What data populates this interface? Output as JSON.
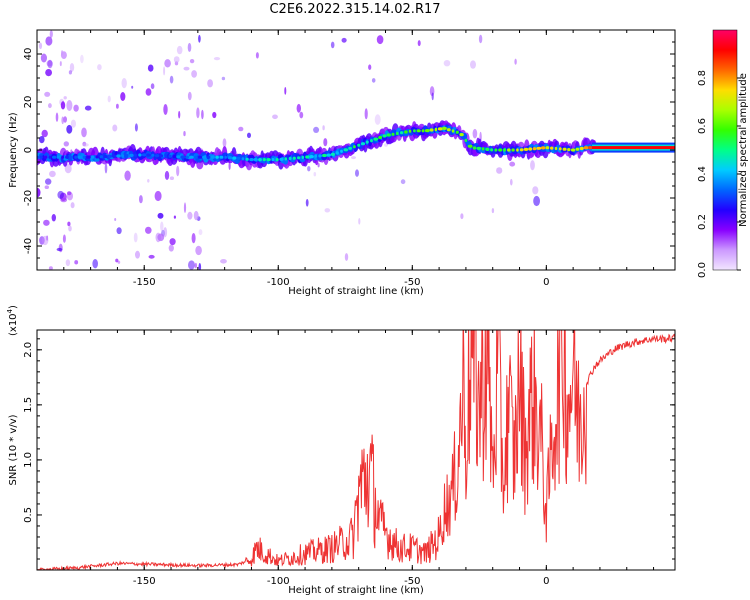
{
  "title": "C2E6.2022.315.14.02.R17",
  "chart_data": [
    {
      "type": "heatmap",
      "title": "C2E6.2022.315.14.02.R17",
      "xlabel": "Height of straight line (km)",
      "ylabel": "Frequency (Hz)",
      "xlim": [
        -190,
        48
      ],
      "ylim": [
        -50,
        50
      ],
      "x_ticks": [
        -150,
        -100,
        -50,
        0
      ],
      "y_ticks": [
        -40,
        -20,
        0,
        20,
        40
      ],
      "colorbar": {
        "label": "Normalized spectral amplitude",
        "range": [
          0.0,
          1.0
        ],
        "ticks": [
          "0.0",
          "0.2",
          "0.4",
          "0.6",
          "0.8"
        ],
        "colormap": [
          "#f2e6ff",
          "#cc99ff",
          "#8800ff",
          "#2200ff",
          "#0066ff",
          "#00ccff",
          "#00ff88",
          "#33ff00",
          "#aaff00",
          "#ffdd00",
          "#ff6600",
          "#ff0000",
          "#ff0066"
        ]
      },
      "ridge": {
        "x": [
          -190,
          -170,
          -150,
          -135,
          -120,
          -110,
          -100,
          -90,
          -80,
          -70,
          -60,
          -50,
          -45,
          -38,
          -32,
          -28,
          -20,
          -10,
          0,
          10,
          15,
          48
        ],
        "y": [
          -3,
          -3,
          -2,
          -3,
          -3,
          -4,
          -4,
          -3,
          -2,
          2,
          6,
          8,
          8,
          9,
          7,
          1,
          0,
          0,
          1,
          0,
          1,
          1
        ],
        "amplitude": [
          0.3,
          0.3,
          0.35,
          0.3,
          0.4,
          0.4,
          0.45,
          0.45,
          0.45,
          0.5,
          0.5,
          0.55,
          0.6,
          0.7,
          0.6,
          0.55,
          0.6,
          0.65,
          0.75,
          0.7,
          0.8,
          0.85
        ]
      }
    },
    {
      "type": "line",
      "title": "",
      "xlabel": "Height of straight line (km)",
      "ylabel": "SNR (10 * v/v)",
      "scale_label": "(x10",
      "scale_exponent": "4",
      "scale_suffix": ")",
      "xlim": [
        -190,
        48
      ],
      "ylim": [
        0,
        21800
      ],
      "x_ticks": [
        -150,
        -100,
        -50,
        0
      ],
      "y_ticks": [
        5000,
        10000,
        15000,
        20000
      ],
      "y_tick_labels": [
        "0.5",
        "1.0",
        "1.5",
        "2.0"
      ],
      "color": "#ee3333",
      "x": [
        -190,
        -175,
        -160,
        -145,
        -130,
        -115,
        -110,
        -108,
        -100,
        -90,
        -80,
        -72,
        -70,
        -66,
        -64,
        -62,
        -55,
        -50,
        -45,
        -40,
        -38,
        -35,
        -33,
        -31,
        -30,
        -28,
        -25,
        -22,
        -20,
        -18,
        -16,
        -14,
        -12,
        -10,
        -8,
        -5,
        -2,
        0,
        3,
        5,
        6,
        8,
        10,
        12,
        15,
        18,
        20,
        25,
        30,
        35,
        40,
        45,
        48
      ],
      "y": [
        0,
        200,
        600,
        500,
        400,
        500,
        1000,
        2000,
        800,
        1500,
        2000,
        3000,
        7000,
        9000,
        6500,
        4000,
        2000,
        2000,
        1500,
        3000,
        5500,
        7000,
        10000,
        17000,
        12000,
        20000,
        15000,
        20000,
        9000,
        18000,
        8000,
        15000,
        10000,
        17500,
        11000,
        16000,
        12000,
        5000,
        14000,
        17500,
        21500,
        15000,
        18500,
        13500,
        17000,
        18500,
        19000,
        20000,
        20500,
        20800,
        21000,
        21000,
        21100
      ]
    }
  ]
}
